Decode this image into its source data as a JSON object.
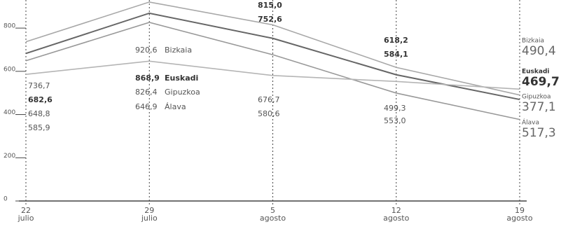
{
  "chart_data": {
    "type": "line",
    "categories": [
      {
        "value": 0,
        "label": "22 julio"
      },
      {
        "value": 1,
        "label": "29 julio"
      },
      {
        "value": 2,
        "label": "5 agosto"
      },
      {
        "value": 3,
        "label": "12 agosto"
      },
      {
        "value": 4,
        "label": "19 agosto"
      }
    ],
    "series": [
      {
        "name": "Bizkaia",
        "color": "#a8a8a8",
        "values": [
          736.7,
          920.6,
          815.0,
          618.2,
          490.4
        ],
        "value_labels": [
          "736,7",
          "920,6",
          "815,0",
          "618,2",
          "490,4"
        ]
      },
      {
        "name": "Euskadi",
        "color": "#666666",
        "values": [
          682.6,
          868.9,
          752.6,
          584.1,
          469.7
        ],
        "value_labels": [
          "682,6",
          "868,9",
          "752,6",
          "584,1",
          "469,7"
        ]
      },
      {
        "name": "Gipuzkoa",
        "color": "#999999",
        "values": [
          648.8,
          826.4,
          676.7,
          499.3,
          377.1
        ],
        "value_labels": [
          "648,8",
          "826,4",
          "676,7",
          "499,3",
          "377,1"
        ]
      },
      {
        "name": "Álava",
        "color": "#b5b5b5",
        "values": [
          585.9,
          646.9,
          580.6,
          553.0,
          517.3
        ],
        "value_labels": [
          "585,9",
          "646,9",
          "580,6",
          "553,0",
          "517,3"
        ]
      }
    ],
    "ylim": [
      0,
      930
    ],
    "yticks": [
      0,
      200,
      400,
      600,
      800
    ]
  }
}
